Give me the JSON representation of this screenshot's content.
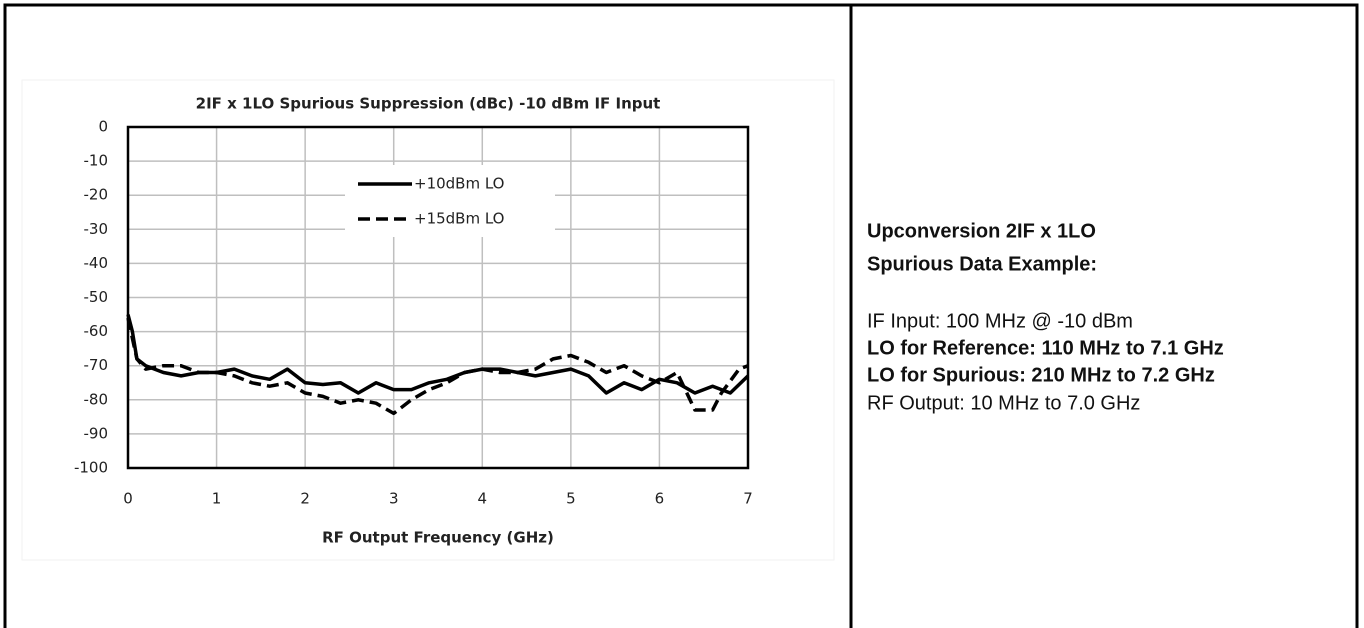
{
  "chart_data": {
    "type": "line",
    "title": "2IF x 1LO Spurious Suppression (dBc) -10 dBm IF Input",
    "x_label": "RF Output Frequency (GHz)",
    "xlim": [
      0,
      7
    ],
    "xticks": [
      0,
      1,
      2,
      3,
      4,
      5,
      6,
      7
    ],
    "ylim": [
      -100,
      0
    ],
    "yticks": [
      0,
      -10,
      -20,
      -30,
      -40,
      -50,
      -60,
      -70,
      -80,
      -90,
      -100
    ],
    "grid": true,
    "legend": "top-center",
    "series": [
      {
        "name": "+10dBm LO",
        "color": "#000000",
        "dash": false,
        "x": [
          0,
          0.05,
          0.1,
          0.2,
          0.4,
          0.6,
          0.8,
          1.0,
          1.2,
          1.4,
          1.6,
          1.8,
          2.0,
          2.2,
          2.4,
          2.6,
          2.8,
          3.0,
          3.2,
          3.4,
          3.6,
          3.8,
          4.0,
          4.2,
          4.4,
          4.6,
          4.8,
          5.0,
          5.2,
          5.4,
          5.6,
          5.8,
          6.0,
          6.2,
          6.4,
          6.6,
          6.8,
          7.0
        ],
        "values": [
          -55,
          -60,
          -68,
          -70,
          -72,
          -73,
          -72,
          -72,
          -71,
          -73,
          -74,
          -71,
          -75,
          -75.5,
          -75,
          -78,
          -75,
          -77,
          -77,
          -75,
          -74,
          -72,
          -71,
          -71,
          -72,
          -73,
          -72,
          -71,
          -73,
          -78,
          -75,
          -77,
          -74,
          -75,
          -78,
          -76,
          -78,
          -73
        ]
      },
      {
        "name": "+15dBm LO",
        "color": "#000000",
        "dash": true,
        "x": [
          0,
          0.05,
          0.1,
          0.2,
          0.4,
          0.6,
          0.8,
          1.0,
          1.2,
          1.4,
          1.6,
          1.8,
          2.0,
          2.2,
          2.4,
          2.6,
          2.8,
          3.0,
          3.2,
          3.4,
          3.6,
          3.8,
          4.0,
          4.2,
          4.4,
          4.6,
          4.8,
          5.0,
          5.2,
          5.4,
          5.6,
          5.8,
          6.0,
          6.2,
          6.4,
          6.6,
          6.7,
          6.9,
          7.0
        ],
        "values": [
          -56,
          -62,
          -68,
          -71,
          -70,
          -70,
          -72,
          -72,
          -73,
          -75,
          -76,
          -75,
          -78,
          -79,
          -81,
          -80,
          -81,
          -84,
          -80,
          -77,
          -75,
          -72,
          -71,
          -72,
          -72,
          -71,
          -68,
          -67,
          -69,
          -72,
          -70,
          -73,
          -75,
          -72,
          -83,
          -83,
          -78,
          -71,
          -70
        ]
      }
    ]
  },
  "panel": {
    "lines": [
      {
        "text": "Upconversion 2IF x 1LO",
        "bold": true
      },
      {
        "text": "Spurious Data Example:",
        "bold": true
      },
      {
        "text": "IF Input: 100 MHz @ -10 dBm",
        "bold": false
      },
      {
        "text": "LO for Reference: 110 MHz to 7.1 GHz",
        "bold": true
      },
      {
        "text": "LO for Spurious: 210 MHz to 7.2 GHz",
        "bold": true
      },
      {
        "text": "RF Output: 10 MHz to 7.0 GHz",
        "bold": false
      }
    ]
  }
}
